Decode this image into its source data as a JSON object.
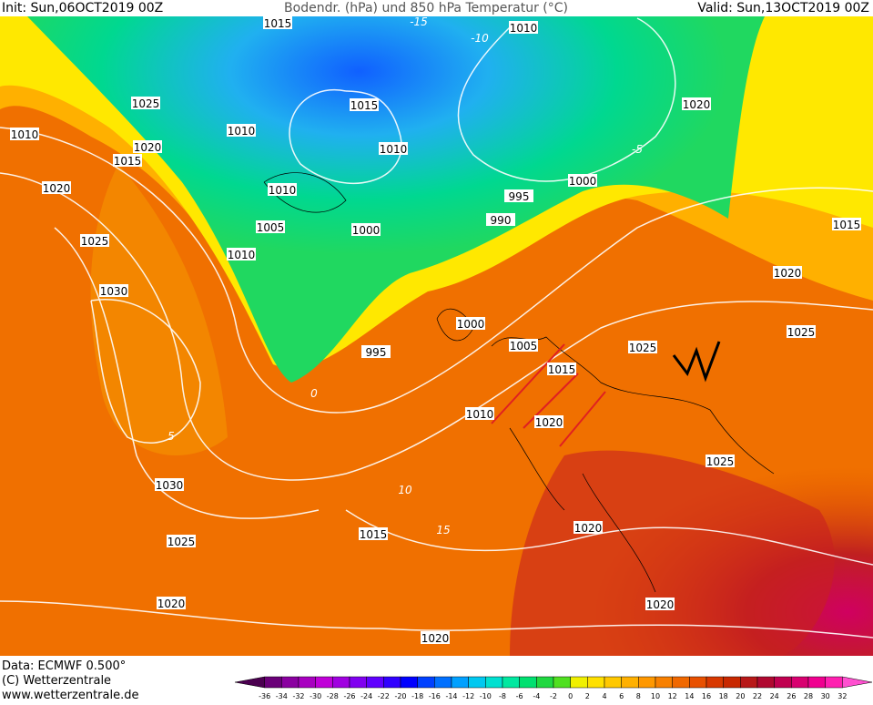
{
  "header": {
    "init": "Init: Sun,06OCT2019 00Z",
    "title": "Bodendr. (hPa) und 850 hPa Temperatur (°C)",
    "valid": "Valid: Sun,13OCT2019 00Z"
  },
  "footer": {
    "data": "Data: ECMWF  0.500°",
    "copyright": "(C) Wetterzentrale",
    "url": "www.wetterzentrale.de"
  },
  "isobar_labels": [
    "1015",
    "1010",
    "1025",
    "1015",
    "1020",
    "1010",
    "1010",
    "1020",
    "1015",
    "1010",
    "1020",
    "1010",
    "995",
    "1000",
    "990",
    "1005",
    "1000",
    "1015",
    "1025",
    "1010",
    "1020",
    "1030",
    "1000",
    "1005",
    "1025",
    "1025",
    "995",
    "1015",
    "1010",
    "1020",
    "1025",
    "1030",
    "1025",
    "1015",
    "1020",
    "1020",
    "1020",
    "1020"
  ],
  "temperature_labels": [
    "-15",
    "-10",
    "-5",
    "0",
    "5",
    "10",
    "15"
  ],
  "colorbar": {
    "labels": [
      -36,
      -34,
      -32,
      -30,
      -28,
      -26,
      -24,
      -22,
      -20,
      -18,
      -16,
      -14,
      -12,
      -10,
      -8,
      -6,
      -4,
      -2,
      0,
      2,
      4,
      6,
      8,
      10,
      12,
      14,
      16,
      18,
      20,
      22,
      24,
      26,
      28,
      30,
      32
    ],
    "colors": [
      "#4b0050",
      "#6a0078",
      "#8a00a0",
      "#a800c0",
      "#c000d8",
      "#a000e0",
      "#8000f0",
      "#6000ff",
      "#3000ff",
      "#0000ff",
      "#0040ff",
      "#0070ff",
      "#00a0ff",
      "#00c8f0",
      "#00e0d0",
      "#00e8a0",
      "#00e070",
      "#20d840",
      "#50e020",
      "#f0f000",
      "#ffe000",
      "#ffc800",
      "#ffb000",
      "#ff9800",
      "#f88000",
      "#f06800",
      "#e85000",
      "#d83800",
      "#c82800",
      "#b81818",
      "#b00830",
      "#c00050",
      "#d80070",
      "#f00090",
      "#ff20b0",
      "#ff50d0"
    ]
  }
}
